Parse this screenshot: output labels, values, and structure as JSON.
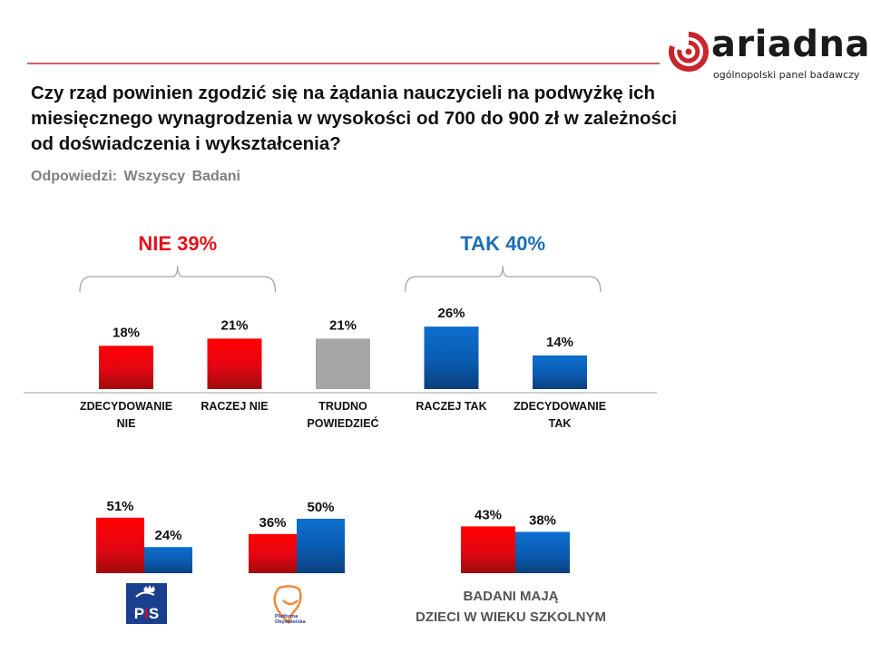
{
  "brand": {
    "name": "ariadna",
    "tagline": "ogólnopolski panel badawczy",
    "colors": {
      "red": "#c8252c",
      "dark": "#1a1a1a"
    }
  },
  "question": "Czy rząd powinien zgodzić się na żądania nauczycieli na podwyżkę ich miesięcznego wynagrodzenia w wysokości od 700 do 900 zł w zależności od doświadczenia i wykształcenia?",
  "subtitle": "Odpowiedzi: Wszyscy Badani",
  "colors": {
    "no": "#e30613",
    "yes": "#0563c1",
    "neutral": "#a6a6a6",
    "no_label": "#e3131b",
    "yes_label": "#1b6fb5"
  },
  "chart_data": [
    {
      "type": "bar",
      "title": "Odpowiedzi: Wszyscy Badani",
      "categories": [
        "ZDECYDOWANIE NIE",
        "RACZEJ NIE",
        "TRUDNO POWIEDZIEĆ",
        "RACZEJ TAK",
        "ZDECYDOWANIE TAK"
      ],
      "category_lines": [
        [
          "ZDECYDOWANIE",
          "NIE"
        ],
        [
          "RACZEJ NIE"
        ],
        [
          "TRUDNO",
          "POWIEDZIEĆ"
        ],
        [
          "RACZEJ TAK"
        ],
        [
          "ZDECYDOWANIE",
          "TAK"
        ]
      ],
      "values": [
        18,
        21,
        21,
        26,
        14
      ],
      "value_labels": [
        "18%",
        "21%",
        "21%",
        "26%",
        "14%"
      ],
      "bar_colors": [
        "no",
        "no",
        "neutral",
        "yes",
        "yes"
      ],
      "groups": [
        {
          "label": "NIE 39%",
          "value": 39,
          "covers": [
            0,
            1
          ],
          "color": "no_label"
        },
        {
          "label": "TAK 40%",
          "value": 40,
          "covers": [
            3,
            4
          ],
          "color": "yes_label"
        }
      ],
      "xlabel": "",
      "ylabel": "",
      "ylim": [
        0,
        30
      ],
      "grid": false,
      "legend": "none"
    },
    {
      "type": "bar",
      "subgroup": "PiS voters",
      "categories": [
        "NIE",
        "TAK"
      ],
      "values": [
        51,
        24
      ],
      "value_labels": [
        "51%",
        "24%"
      ],
      "logo": {
        "name": "pis-logo",
        "text": "PiS"
      }
    },
    {
      "type": "bar",
      "subgroup": "Platforma Obywatelska voters",
      "categories": [
        "NIE",
        "TAK"
      ],
      "values": [
        36,
        50
      ],
      "value_labels": [
        "36%",
        "50%"
      ],
      "logo": {
        "name": "po-logo",
        "text_lines": [
          "Platforma",
          "Obywatelska"
        ]
      }
    },
    {
      "type": "bar",
      "subgroup": "Badani mają dzieci w wieku szkolnym",
      "categories": [
        "NIE",
        "TAK"
      ],
      "values": [
        43,
        38
      ],
      "value_labels": [
        "43%",
        "38%"
      ],
      "label_lines": [
        "BADANI MAJĄ",
        "DZIECI W WIEKU SZKOLNYM"
      ]
    }
  ]
}
